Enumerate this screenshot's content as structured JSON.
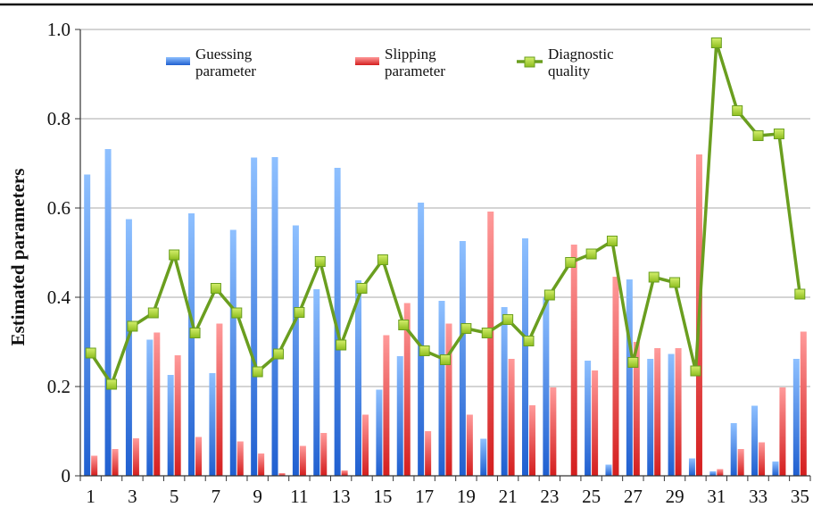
{
  "chart_data": {
    "type": "bar",
    "ylabel": "Estimated parameters",
    "xlabel": "",
    "ylim": [
      0,
      1.0
    ],
    "y_ticks": [
      "0",
      "0.2",
      "0.4",
      "0.6",
      "0.8",
      "1.0"
    ],
    "x_tick_labels": [
      "1",
      "3",
      "5",
      "7",
      "9",
      "11",
      "13",
      "15",
      "17",
      "19",
      "21",
      "23",
      "25",
      "27",
      "29",
      "31",
      "33",
      "35"
    ],
    "x_tick_values": [
      1,
      3,
      5,
      7,
      9,
      11,
      13,
      15,
      17,
      19,
      21,
      23,
      25,
      27,
      29,
      31,
      33,
      35
    ],
    "grid": "horizontal",
    "legend_position": "top",
    "categories": [
      1,
      2,
      3,
      4,
      5,
      6,
      7,
      8,
      9,
      10,
      11,
      12,
      13,
      14,
      15,
      16,
      17,
      18,
      19,
      20,
      21,
      22,
      23,
      24,
      25,
      26,
      27,
      28,
      29,
      30,
      31,
      32,
      33,
      34,
      35
    ],
    "series": [
      {
        "name": "Guessing parameter",
        "type": "bar",
        "color": "#3a7fe0",
        "values": [
          0.675,
          0.732,
          0.575,
          0.305,
          0.226,
          0.588,
          0.23,
          0.551,
          0.713,
          0.714,
          0.561,
          0.418,
          0.69,
          0.438,
          0.193,
          0.268,
          0.612,
          0.392,
          0.526,
          0.083,
          0.378,
          0.532,
          0.4,
          0.0,
          0.258,
          0.025,
          0.44,
          0.262,
          0.273,
          0.039,
          0.01,
          0.118,
          0.157,
          0.032,
          0.262
        ]
      },
      {
        "name": "Slipping parameter",
        "type": "bar",
        "color": "#e23b3b",
        "values": [
          0.045,
          0.06,
          0.084,
          0.321,
          0.27,
          0.087,
          0.341,
          0.077,
          0.05,
          0.006,
          0.067,
          0.096,
          0.012,
          0.137,
          0.315,
          0.387,
          0.1,
          0.341,
          0.137,
          0.592,
          0.262,
          0.158,
          0.198,
          0.518,
          0.236,
          0.446,
          0.3,
          0.286,
          0.286,
          0.72,
          0.015,
          0.06,
          0.075,
          0.198,
          0.323
        ]
      },
      {
        "name": "Diagnostic quality",
        "type": "line",
        "color": "#6a9e1f",
        "marker_color": "#a6d12e",
        "values": [
          0.275,
          0.205,
          0.335,
          0.365,
          0.495,
          0.32,
          0.42,
          0.365,
          0.233,
          0.273,
          0.366,
          0.48,
          0.293,
          0.42,
          0.484,
          0.338,
          0.28,
          0.26,
          0.33,
          0.32,
          0.35,
          0.302,
          0.405,
          0.478,
          0.497,
          0.526,
          0.254,
          0.445,
          0.433,
          0.235,
          0.97,
          0.818,
          0.762,
          0.766,
          0.407
        ]
      }
    ],
    "legend": [
      {
        "line1": "Guessing",
        "line2": "parameter",
        "icon": "bar-swatch",
        "color": "#3a7fe0"
      },
      {
        "line1": "Slipping",
        "line2": "parameter",
        "icon": "bar-swatch",
        "color": "#e23b3b"
      },
      {
        "line1": "Diagnostic",
        "line2": "quality",
        "icon": "line-square-marker",
        "color": "#6a9e1f"
      }
    ]
  }
}
